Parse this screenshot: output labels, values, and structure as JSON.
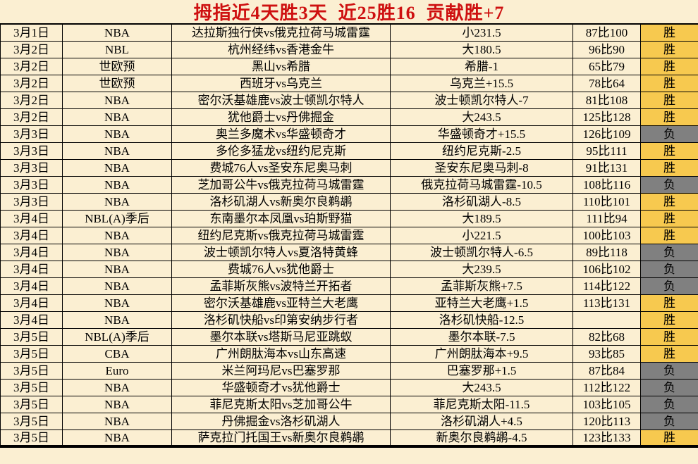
{
  "title": "拇指近4天胜3天  近25胜16  贡献胜+7",
  "colors": {
    "page_bg": "#FBEFD2",
    "win_bg": "#F7C94F",
    "lose_bg": "#808080",
    "title_color": "#CE1010",
    "border_color": "#000000",
    "text_color": "#000000"
  },
  "legend": {
    "win_label": "胜",
    "lose_label": "负"
  },
  "table": {
    "columns": [
      "date",
      "league",
      "match",
      "bet",
      "score",
      "result"
    ],
    "rows": [
      {
        "date": "3月1日",
        "league": "NBA",
        "match": "达拉斯独行侠vs俄克拉荷马城雷霆",
        "bet": "小231.5",
        "score": "87比100",
        "result": "胜"
      },
      {
        "date": "3月2日",
        "league": "NBL",
        "match": "杭州经纬vs香港金牛",
        "bet": "大180.5",
        "score": "96比90",
        "result": "胜"
      },
      {
        "date": "3月2日",
        "league": "世欧预",
        "match": "黑山vs希腊",
        "bet": "希腊-1",
        "score": "65比79",
        "result": "胜"
      },
      {
        "date": "3月2日",
        "league": "世欧预",
        "match": "西班牙vs乌克兰",
        "bet": "乌克兰+15.5",
        "score": "78比64",
        "result": "胜"
      },
      {
        "date": "3月2日",
        "league": "NBA",
        "match": "密尔沃基雄鹿vs波士顿凯尔特人",
        "bet": "波士顿凯尔特人-7",
        "score": "81比108",
        "result": "胜"
      },
      {
        "date": "3月2日",
        "league": "NBA",
        "match": "犹他爵士vs丹佛掘金",
        "bet": "大243.5",
        "score": "125比128",
        "result": "胜"
      },
      {
        "date": "3月3日",
        "league": "NBA",
        "match": "奥兰多魔术vs华盛顿奇才",
        "bet": "华盛顿奇才+15.5",
        "score": "126比109",
        "result": "负"
      },
      {
        "date": "3月3日",
        "league": "NBA",
        "match": "多伦多猛龙vs纽约尼克斯",
        "bet": "纽约尼克斯-2.5",
        "score": "95比111",
        "result": "胜"
      },
      {
        "date": "3月3日",
        "league": "NBA",
        "match": "费城76人vs圣安东尼奥马刺",
        "bet": "圣安东尼奥马刺-8",
        "score": "91比131",
        "result": "胜"
      },
      {
        "date": "3月3日",
        "league": "NBA",
        "match": "芝加哥公牛vs俄克拉荷马城雷霆",
        "bet": "俄克拉荷马城雷霆-10.5",
        "score": "108比116",
        "result": "负"
      },
      {
        "date": "3月3日",
        "league": "NBA",
        "match": "洛杉矶湖人vs新奥尔良鹈鹕",
        "bet": "洛杉矶湖人-8.5",
        "score": "110比101",
        "result": "胜"
      },
      {
        "date": "3月4日",
        "league": "NBL(A)季后",
        "match": "东南墨尔本凤凰vs珀斯野猫",
        "bet": "大189.5",
        "score": "111比94",
        "result": "胜"
      },
      {
        "date": "3月4日",
        "league": "NBA",
        "match": "纽约尼克斯vs俄克拉荷马城雷霆",
        "bet": "小221.5",
        "score": "100比103",
        "result": "胜"
      },
      {
        "date": "3月4日",
        "league": "NBA",
        "match": "波士顿凯尔特人vs夏洛特黄蜂",
        "bet": "波士顿凯尔特人-6.5",
        "score": "89比118",
        "result": "负"
      },
      {
        "date": "3月4日",
        "league": "NBA",
        "match": "费城76人vs犹他爵士",
        "bet": "大239.5",
        "score": "106比102",
        "result": "负"
      },
      {
        "date": "3月4日",
        "league": "NBA",
        "match": "孟菲斯灰熊vs波特兰开拓者",
        "bet": "孟菲斯灰熊+7.5",
        "score": "114比122",
        "result": "负"
      },
      {
        "date": "3月4日",
        "league": "NBA",
        "match": "密尔沃基雄鹿vs亚特兰大老鹰",
        "bet": "亚特兰大老鹰+1.5",
        "score": "113比131",
        "result": "胜"
      },
      {
        "date": "3月4日",
        "league": "NBA",
        "match": "洛杉矶快船vs印第安纳步行者",
        "bet": "洛杉矶快船-12.5",
        "score": "",
        "result": "胜"
      },
      {
        "date": "3月5日",
        "league": "NBL(A)季后",
        "match": "墨尔本联vs塔斯马尼亚跳蚁",
        "bet": "墨尔本联-7.5",
        "score": "82比68",
        "result": "胜"
      },
      {
        "date": "3月5日",
        "league": "CBA",
        "match": "广州朗肽海本vs山东高速",
        "bet": "广州朗肽海本+9.5",
        "score": "93比85",
        "result": "胜"
      },
      {
        "date": "3月5日",
        "league": "Euro",
        "match": "米兰阿玛尼vs巴塞罗那",
        "bet": "巴塞罗那+1.5",
        "score": "87比84",
        "result": "负"
      },
      {
        "date": "3月5日",
        "league": "NBA",
        "match": "华盛顿奇才vs犹他爵士",
        "bet": "大243.5",
        "score": "112比122",
        "result": "负"
      },
      {
        "date": "3月5日",
        "league": "NBA",
        "match": "菲尼克斯太阳vs芝加哥公牛",
        "bet": "菲尼克斯太阳-11.5",
        "score": "103比105",
        "result": "负"
      },
      {
        "date": "3月5日",
        "league": "NBA",
        "match": "丹佛掘金vs洛杉矶湖人",
        "bet": "洛杉矶湖人+4.5",
        "score": "120比113",
        "result": "负"
      },
      {
        "date": "3月5日",
        "league": "NBA",
        "match": "萨克拉门托国王vs新奥尔良鹈鹕",
        "bet": "新奥尔良鹈鹕-4.5",
        "score": "123比133",
        "result": "胜"
      }
    ]
  }
}
